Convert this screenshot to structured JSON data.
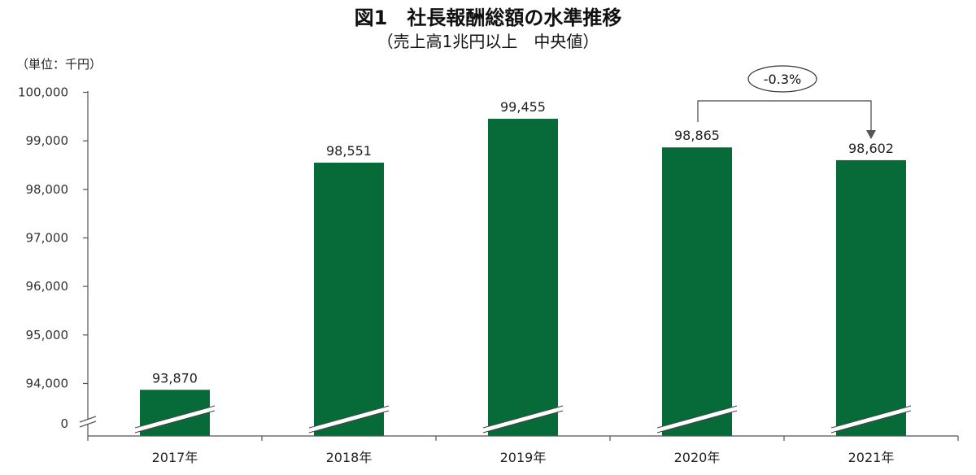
{
  "chart_data": {
    "type": "bar",
    "title": "図1　社長報酬総額の水準推移",
    "subtitle": "（売上高1兆円以上　中央値）",
    "unit_label": "（単位：千円）",
    "categories": [
      "2017年",
      "2018年",
      "2019年",
      "2020年",
      "2021年"
    ],
    "values": [
      93870,
      98551,
      99455,
      98865,
      98602
    ],
    "value_labels": [
      "93,870",
      "98,551",
      "99,455",
      "98,865",
      "98,602"
    ],
    "yticks": [
      {
        "value": 0,
        "label": "0"
      },
      {
        "value": 94000,
        "label": "94,000"
      },
      {
        "value": 95000,
        "label": "95,000"
      },
      {
        "value": 96000,
        "label": "96,000"
      },
      {
        "value": 97000,
        "label": "97,000"
      },
      {
        "value": 98000,
        "label": "98,000"
      },
      {
        "value": 99000,
        "label": "99,000"
      },
      {
        "value": 100000,
        "label": "100,000"
      }
    ],
    "ylim": [
      93400,
      100000
    ],
    "axis_break": true,
    "bar_color": "#066b39",
    "grid": false,
    "annotation": {
      "text": "-0.3%",
      "from": "2020年",
      "to": "2021年"
    }
  }
}
